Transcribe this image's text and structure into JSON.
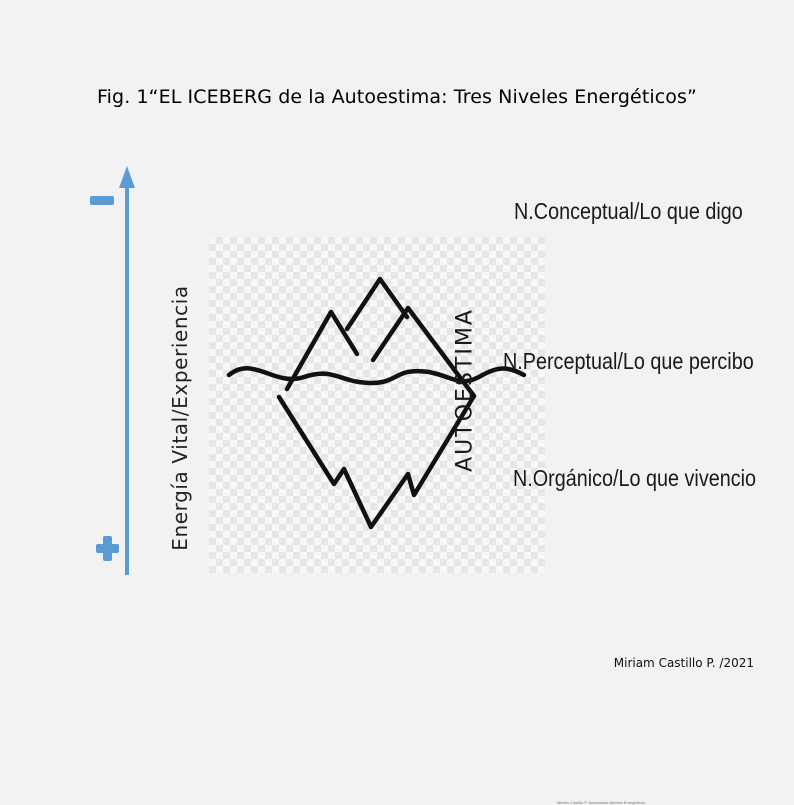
{
  "title": "Fig. 1“EL ICEBERG de la Autoestima: Tres Niveles Energéticos”",
  "axis": {
    "label": "Energía Vital/Experiencia",
    "top_symbol": "minus-sign",
    "bottom_symbol": "plus-sign",
    "color": "#5b9bd5"
  },
  "iceberg": {
    "side_label": "AUTOESTIMA",
    "footnote": "Miriam Castillo P. Autoestima Niveles Energeticos"
  },
  "levels": [
    {
      "label": "N.Conceptual/Lo que digo"
    },
    {
      "label": "N.Perceptual/Lo que percibo"
    },
    {
      "label": "N.Orgánico/Lo que vivencio"
    }
  ],
  "credit": "Miriam Castillo P. /2021"
}
